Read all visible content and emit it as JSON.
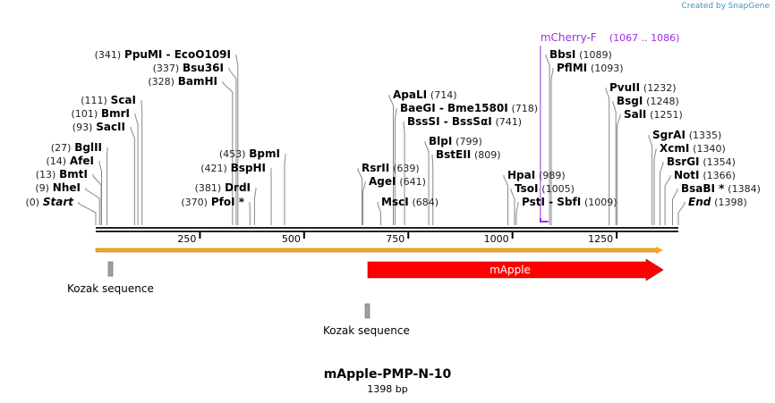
{
  "credit": {
    "prefix": "Created by",
    "brand": "SnapGene"
  },
  "title": "mApple-PMP-N-10",
  "length": "1398 bp",
  "total_bp": 1398,
  "ticks": [
    250,
    500,
    750,
    1000,
    1250
  ],
  "primer": {
    "name": "mCherry-F",
    "range": "(1067 .. 1086)",
    "start": 1067,
    "end": 1086,
    "color": "#9b30e0"
  },
  "features": [
    {
      "name": "mApple",
      "start": 660,
      "end": 1370,
      "color": "#ff0000",
      "type": "arrow"
    },
    {
      "name": "Kozak sequence",
      "start": 30,
      "end": 40,
      "color": "#a0a0a0",
      "type": "box"
    },
    {
      "name": "Kozak sequence",
      "start": 654,
      "end": 660,
      "color": "#a0a0a0",
      "type": "box"
    }
  ],
  "orf_color": "#f5a623",
  "sites": [
    {
      "name": "Start",
      "pos": 0,
      "label": "(0)",
      "italic": true
    },
    {
      "name": "NheI",
      "pos": 9,
      "label": "(9)"
    },
    {
      "name": "BmtI",
      "pos": 13,
      "label": "(13)"
    },
    {
      "name": "AfeI",
      "pos": 14,
      "label": "(14)"
    },
    {
      "name": "BglII",
      "pos": 27,
      "label": "(27)"
    },
    {
      "name": "SacII",
      "pos": 93,
      "label": "(93)"
    },
    {
      "name": "BmrI",
      "pos": 101,
      "label": "(101)"
    },
    {
      "name": "ScaI",
      "pos": 111,
      "label": "(111)"
    },
    {
      "name": "BamHI",
      "pos": 328,
      "label": "(328)"
    },
    {
      "name": "Bsu36I",
      "pos": 337,
      "label": "(337)"
    },
    {
      "name": "PpuMI  - EcoO109I",
      "pos": 341,
      "label": "(341)"
    },
    {
      "name": "PfoI *",
      "pos": 370,
      "label": "(370)"
    },
    {
      "name": "DrdI",
      "pos": 381,
      "label": "(381)"
    },
    {
      "name": "BspHI",
      "pos": 421,
      "label": "(421)"
    },
    {
      "name": "BpmI",
      "pos": 453,
      "label": "(453)"
    },
    {
      "name": "RsrII",
      "pos": 639,
      "label": "(639)"
    },
    {
      "name": "AgeI",
      "pos": 641,
      "label": "(641)"
    },
    {
      "name": "MscI",
      "pos": 684,
      "label": "(684)"
    },
    {
      "name": "ApaLI",
      "pos": 714,
      "label": "(714)"
    },
    {
      "name": "BaeGI  - Bme1580I",
      "pos": 718,
      "label": "(718)"
    },
    {
      "name": "BssSI  - BssSαI",
      "pos": 741,
      "label": "(741)"
    },
    {
      "name": "BlpI",
      "pos": 799,
      "label": "(799)"
    },
    {
      "name": "BstEII",
      "pos": 809,
      "label": "(809)"
    },
    {
      "name": "HpaI",
      "pos": 989,
      "label": "(989)"
    },
    {
      "name": "TsoI",
      "pos": 1005,
      "label": "(1005)"
    },
    {
      "name": "PstI  - SbfI",
      "pos": 1009,
      "label": "(1009)"
    },
    {
      "name": "BbsI",
      "pos": 1089,
      "label": "(1089)"
    },
    {
      "name": "PflMI",
      "pos": 1093,
      "label": "(1093)"
    },
    {
      "name": "PvuII",
      "pos": 1232,
      "label": "(1232)"
    },
    {
      "name": "BsgI",
      "pos": 1248,
      "label": "(1248)"
    },
    {
      "name": "SalI",
      "pos": 1251,
      "label": "(1251)"
    },
    {
      "name": "SgrAI",
      "pos": 1335,
      "label": "(1335)"
    },
    {
      "name": "XcmI",
      "pos": 1340,
      "label": "(1340)"
    },
    {
      "name": "BsrGI",
      "pos": 1354,
      "label": "(1354)"
    },
    {
      "name": "NotI",
      "pos": 1366,
      "label": "(1366)"
    },
    {
      "name": "BsaBI *",
      "pos": 1384,
      "label": "(1384)"
    },
    {
      "name": "End",
      "pos": 1398,
      "label": "(1398)",
      "italic": true
    }
  ]
}
